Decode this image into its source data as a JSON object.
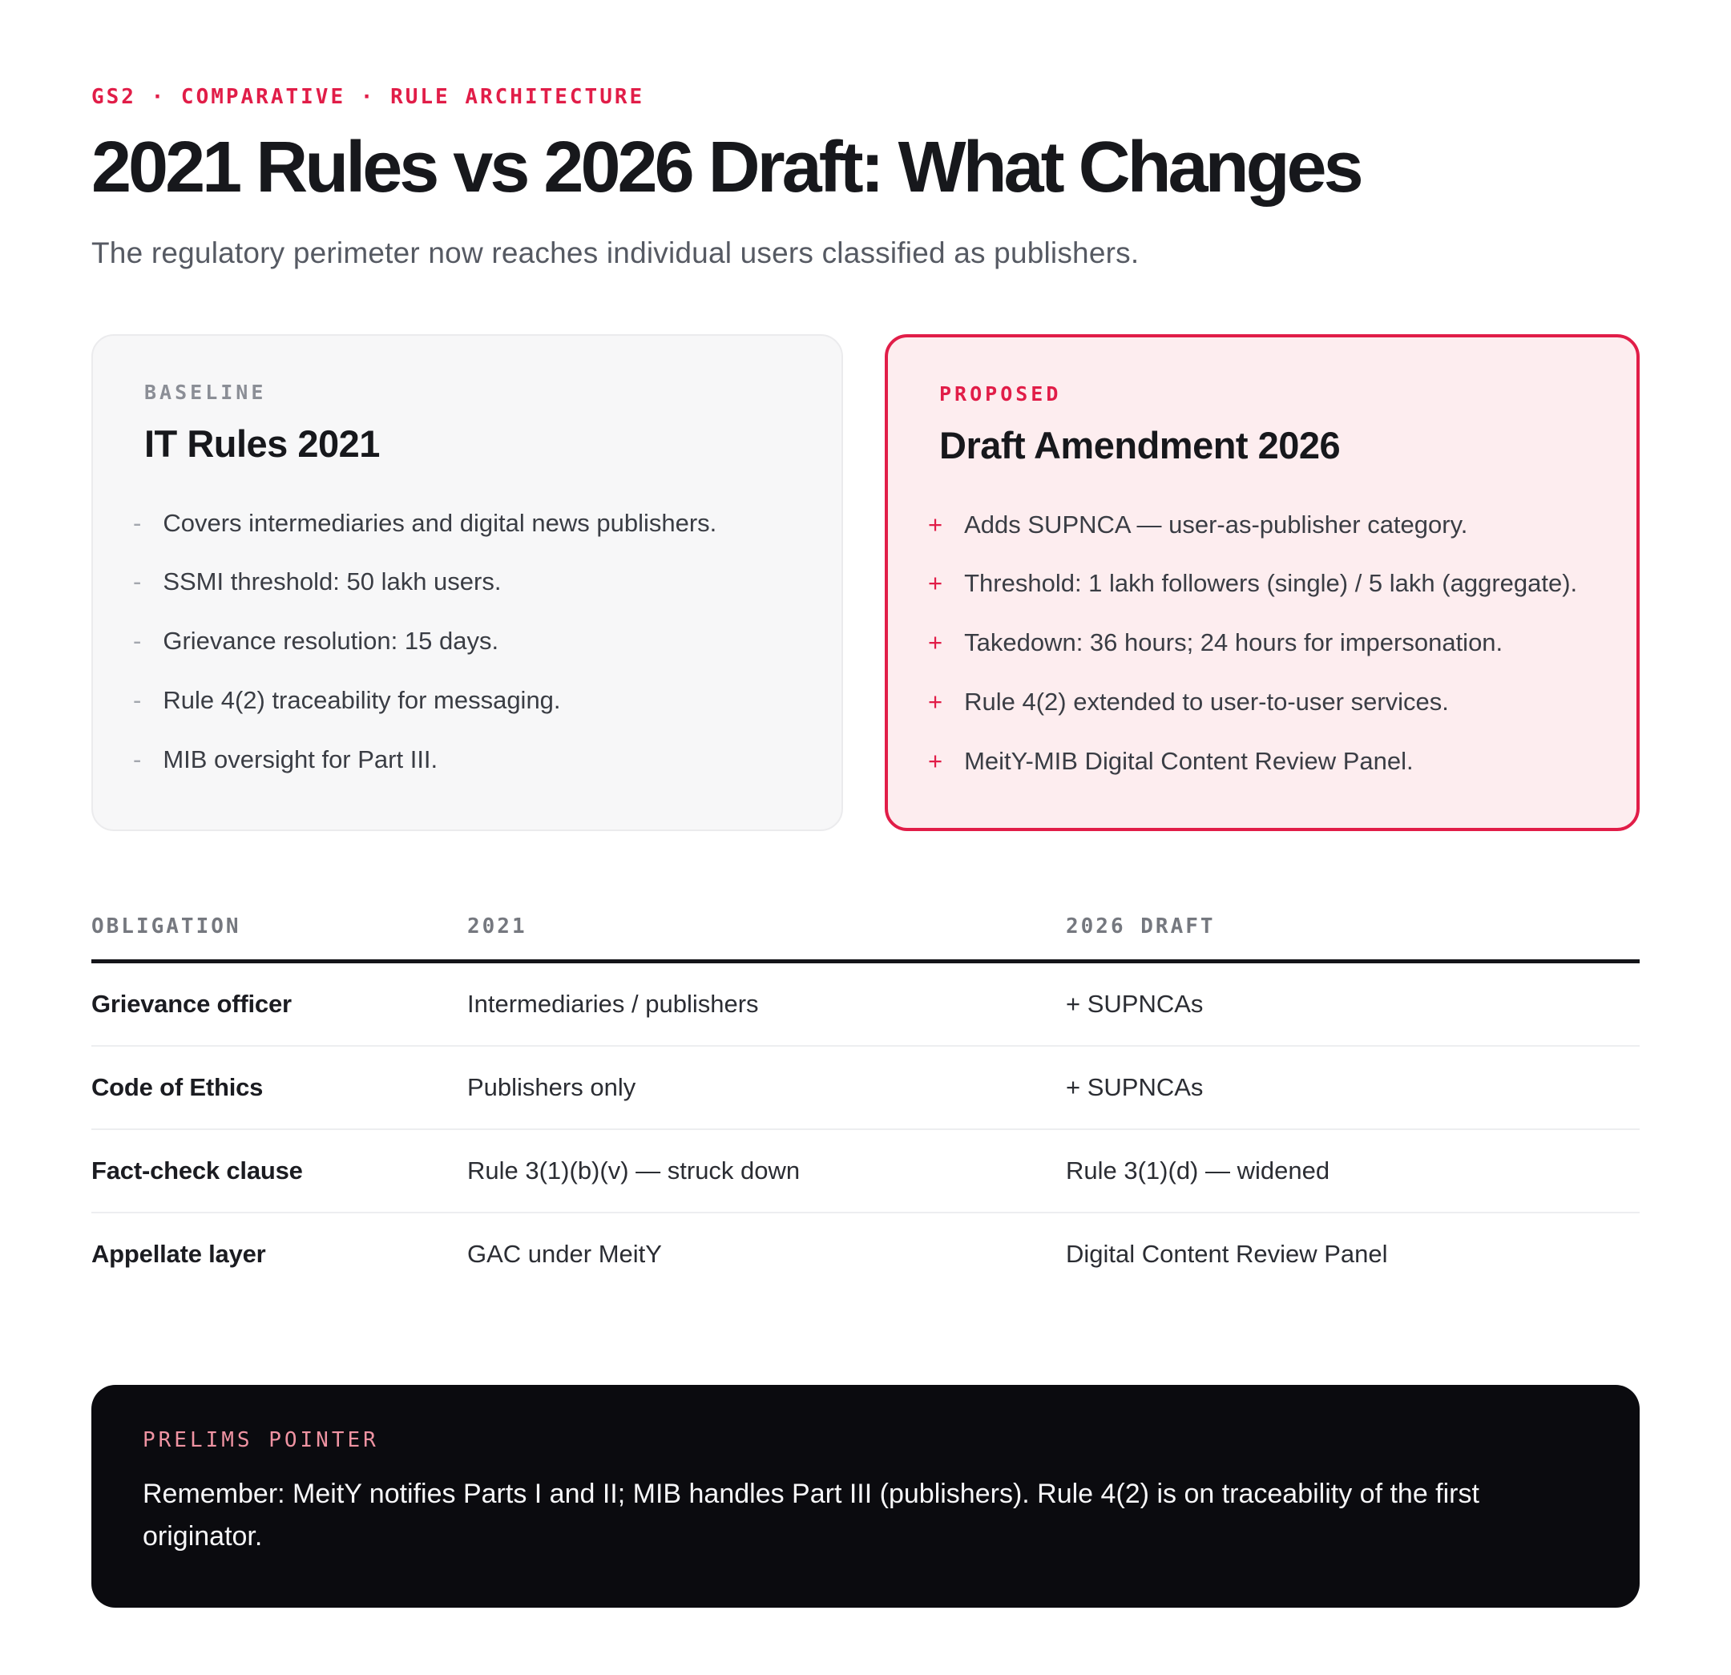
{
  "header": {
    "eyebrow": "GS2 · COMPARATIVE · RULE ARCHITECTURE",
    "title": "2021 Rules vs 2026 Draft: What Changes",
    "subtitle": "The regulatory perimeter now reaches individual users classified as publishers."
  },
  "cards": {
    "baseline": {
      "label": "BASELINE",
      "title": "IT Rules 2021",
      "marker": "-",
      "items": [
        "Covers intermediaries and digital news publishers.",
        "SSMI threshold: 50 lakh users.",
        "Grievance resolution: 15 days.",
        "Rule 4(2) traceability for messaging.",
        "MIB oversight for Part III."
      ]
    },
    "proposed": {
      "label": "PROPOSED",
      "title": "Draft Amendment 2026",
      "marker": "+",
      "items": [
        "Adds SUPNCA — user-as-publisher category.",
        "Threshold: 1 lakh followers (single) / 5 lakh (aggregate).",
        "Takedown: 36 hours; 24 hours for impersonation.",
        "Rule 4(2) extended to user-to-user services.",
        "MeitY-MIB Digital Content Review Panel."
      ]
    }
  },
  "table": {
    "headers": [
      "OBLIGATION",
      "2021",
      "2026 DRAFT"
    ],
    "rows": [
      [
        "Grievance officer",
        "Intermediaries / publishers",
        "+ SUPNCAs"
      ],
      [
        "Code of Ethics",
        "Publishers only",
        "+ SUPNCAs"
      ],
      [
        "Fact-check clause",
        "Rule 3(1)(b)(v) — struck down",
        "Rule 3(1)(d) — widened"
      ],
      [
        "Appellate layer",
        "GAC under MeitY",
        "Digital Content Review Panel"
      ]
    ]
  },
  "note": {
    "label": "PRELIMS POINTER",
    "text": "Remember: MeitY notifies Parts I and II; MIB handles Part III (publishers). Rule 4(2) is on traceability of the first originator."
  },
  "colors": {
    "accent": "#e11d48",
    "accent_soft_bg": "#fdedef",
    "baseline_bg": "#f7f7f8",
    "note_bg": "#0b0b0f",
    "note_label": "#ef93a2",
    "ink": "#17181c",
    "muted": "#565a63",
    "table_header": "#75787f"
  }
}
